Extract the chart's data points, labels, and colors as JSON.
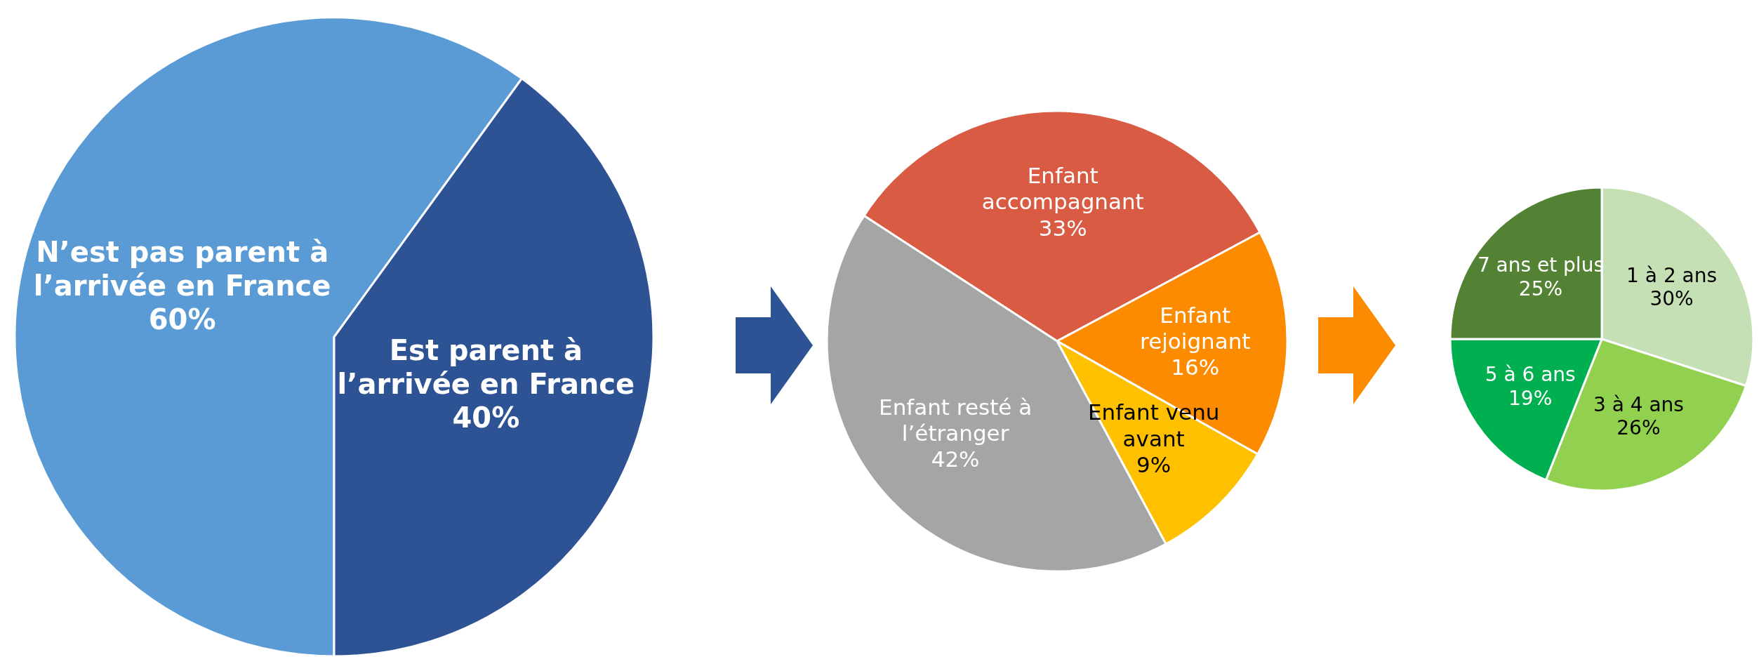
{
  "chart_data": [
    {
      "type": "pie",
      "categories": [
        "N’est pas parent à l’arrivée en France",
        "Est parent à l’arrivée en France"
      ],
      "values": [
        60,
        40
      ],
      "colors": [
        "#5b9bd5",
        "#2e5394"
      ],
      "value_labels": [
        "60%",
        "40%"
      ]
    },
    {
      "type": "pie",
      "categories": [
        "Enfant accompagnant",
        "Enfant rejoignant",
        "Enfant venu avant",
        "Enfant resté à l’étranger"
      ],
      "values": [
        33,
        16,
        9,
        42
      ],
      "colors": [
        "#d95b43",
        "#fd8b00",
        "#ffc000",
        "#a5a5a5"
      ],
      "value_labels": [
        "33%",
        "16%",
        "9%",
        "42%"
      ]
    },
    {
      "type": "pie",
      "categories": [
        "1 à 2 ans",
        "3 à 4 ans",
        "5 à 6 ans",
        "7 ans et plus"
      ],
      "values": [
        30,
        26,
        19,
        25
      ],
      "colors": [
        "#c5e0b4",
        "#92d050",
        "#00b050",
        "#548235"
      ],
      "value_labels": [
        "30%",
        "26%",
        "19%",
        "25%"
      ]
    }
  ]
}
